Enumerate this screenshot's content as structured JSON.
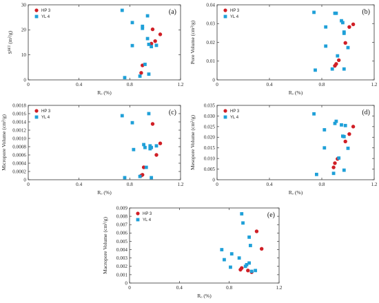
{
  "colors": {
    "hp3": "#d01f26",
    "yl4": "#1fa0d8",
    "axis": "#333333"
  },
  "chart_data": [
    {
      "type": "scatter",
      "panel_label": "(a)",
      "xlabel": "Rₒ (%)",
      "ylabel": "Sᴮᴱᵀ (m²/g)",
      "xlim": [
        0,
        1.2
      ],
      "ylim": [
        0,
        30
      ],
      "xticks": [
        "0",
        "0.4",
        "0.8",
        "1.2"
      ],
      "yticks": [
        "0",
        "10",
        "20",
        "30"
      ],
      "legend_position": "top-left",
      "series": [
        {
          "name": "HP 3",
          "marker": "circle",
          "points": [
            [
              0.89,
              2.8
            ],
            [
              0.9,
              5.8
            ],
            [
              0.98,
              20.2
            ],
            [
              1.0,
              15.5
            ],
            [
              1.04,
              18.2
            ],
            [
              0.97,
              14.5
            ]
          ]
        },
        {
          "name": "YL 4",
          "marker": "square",
          "points": [
            [
              0.74,
              27.8
            ],
            [
              0.76,
              0.9
            ],
            [
              0.82,
              22.9
            ],
            [
              0.82,
              13.7
            ],
            [
              0.88,
              1.5
            ],
            [
              0.9,
              21.4
            ],
            [
              0.9,
              20.6
            ],
            [
              0.92,
              6.2
            ],
            [
              0.94,
              25.6
            ],
            [
              0.94,
              16.5
            ],
            [
              0.95,
              2.3
            ],
            [
              0.95,
              14.2
            ],
            [
              0.97,
              13.3
            ],
            [
              1.01,
              13.8
            ]
          ]
        }
      ]
    },
    {
      "type": "scatter",
      "panel_label": "(b)",
      "xlabel": "Rₒ (%)",
      "ylabel": "Pore Volume (cm³/g)",
      "xlim": [
        0,
        1.2
      ],
      "ylim": [
        0,
        0.04
      ],
      "xticks": [
        "0",
        "0.4",
        "0.8",
        "1.2"
      ],
      "yticks": [
        "0",
        "0.01",
        "0.02",
        "0.03",
        "0.04"
      ],
      "legend_position": "top-left",
      "series": [
        {
          "name": "HP 3",
          "marker": "circle",
          "points": [
            [
              0.9,
              0.0075
            ],
            [
              0.91,
              0.0085
            ],
            [
              0.93,
              0.0105
            ],
            [
              0.98,
              0.0197
            ],
            [
              1.01,
              0.0282
            ],
            [
              1.04,
              0.0296
            ]
          ]
        },
        {
          "name": "YL 4",
          "marker": "square",
          "points": [
            [
              0.74,
              0.036
            ],
            [
              0.75,
              0.0052
            ],
            [
              0.83,
              0.0282
            ],
            [
              0.83,
              0.018
            ],
            [
              0.88,
              0.0058
            ],
            [
              0.9,
              0.0355
            ],
            [
              0.91,
              0.0355
            ],
            [
              0.92,
              0.0128
            ],
            [
              0.95,
              0.0315
            ],
            [
              0.96,
              0.0305
            ],
            [
              0.97,
              0.0255
            ],
            [
              0.97,
              0.0248
            ],
            [
              0.97,
              0.0058
            ],
            [
              1.0,
              0.0172
            ]
          ]
        }
      ]
    },
    {
      "type": "scatter",
      "panel_label": "(c)",
      "xlabel": "Rₒ (%)",
      "ylabel": "Micropore Volume (cm³/g)",
      "xlim": [
        0,
        1.2
      ],
      "ylim": [
        0,
        0.0018
      ],
      "xticks": [
        "0",
        "0.4",
        "0.8",
        "1.2"
      ],
      "yticks": [
        "0",
        "0.0002",
        "0.0004",
        "0.0006",
        "0.0008",
        "0.0010",
        "0.0012",
        "0.0014",
        "0.0016",
        "0.0018"
      ],
      "legend_position": "top-left",
      "series": [
        {
          "name": "HP 3",
          "marker": "circle",
          "points": [
            [
              0.89,
              0.0001
            ],
            [
              0.9,
              0.00012
            ],
            [
              0.91,
              0.0003
            ],
            [
              0.98,
              0.00135
            ],
            [
              1.01,
              0.0006
            ],
            [
              1.04,
              0.00088
            ]
          ]
        },
        {
          "name": "YL 4",
          "marker": "square",
          "points": [
            [
              0.74,
              0.00155
            ],
            [
              0.76,
              5e-05
            ],
            [
              0.82,
              0.00138
            ],
            [
              0.83,
              0.00073
            ],
            [
              0.88,
              8e-05
            ],
            [
              0.91,
              0.00085
            ],
            [
              0.92,
              0.00078
            ],
            [
              0.93,
              0.0003
            ],
            [
              0.95,
              0.0016
            ],
            [
              0.96,
              0.00082
            ],
            [
              0.96,
              0.00075
            ],
            [
              0.97,
              0.00078
            ],
            [
              0.97,
              5e-05
            ],
            [
              1.01,
              0.00082
            ]
          ]
        }
      ]
    },
    {
      "type": "scatter",
      "panel_label": "(d)",
      "xlabel": "Rₒ (%)",
      "ylabel": "Mesopore Volume (cm³/g)",
      "xlim": [
        0,
        1.2
      ],
      "ylim": [
        0,
        0.035
      ],
      "xticks": [
        "0",
        "0.4",
        "0.8",
        "1.2"
      ],
      "yticks": [
        "0",
        "0.005",
        "0.010",
        "0.015",
        "0.020",
        "0.025",
        "0.030",
        "0.035"
      ],
      "legend_position": "top-left",
      "series": [
        {
          "name": "HP 3",
          "marker": "circle",
          "points": [
            [
              0.89,
              0.0058
            ],
            [
              0.9,
              0.0078
            ],
            [
              0.92,
              0.0098
            ],
            [
              0.98,
              0.018
            ],
            [
              1.01,
              0.0215
            ],
            [
              1.04,
              0.025
            ]
          ]
        },
        {
          "name": "YL 4",
          "marker": "square",
          "points": [
            [
              0.74,
              0.031
            ],
            [
              0.76,
              0.0025
            ],
            [
              0.82,
              0.0235
            ],
            [
              0.82,
              0.015
            ],
            [
              0.89,
              0.003
            ],
            [
              0.9,
              0.0265
            ],
            [
              0.91,
              0.0275
            ],
            [
              0.93,
              0.0102
            ],
            [
              0.95,
              0.0258
            ],
            [
              0.96,
              0.0205
            ],
            [
              0.97,
              0.0203
            ],
            [
              0.97,
              0.0045
            ],
            [
              0.98,
              0.0255
            ],
            [
              1.0,
              0.0148
            ]
          ]
        }
      ]
    },
    {
      "type": "scatter",
      "panel_label": "(e)",
      "xlabel": "Rₒ (%)",
      "ylabel": "Macropore Volume (cm³/g)",
      "xlim": [
        0,
        1.2
      ],
      "ylim": [
        0,
        0.009
      ],
      "xticks": [
        "0",
        "0.4",
        "0.8",
        "1.2"
      ],
      "yticks": [
        "0",
        "0.001",
        "0.002",
        "0.003",
        "0.004",
        "0.005",
        "0.006",
        "0.007",
        "0.008",
        "0.009"
      ],
      "legend_position": "top-left",
      "series": [
        {
          "name": "HP 3",
          "marker": "circle",
          "points": [
            [
              0.89,
              0.0016
            ],
            [
              0.9,
              0.0018
            ],
            [
              0.95,
              0.0015
            ],
            [
              0.98,
              0.0013
            ],
            [
              1.02,
              0.0062
            ],
            [
              1.06,
              0.0041
            ]
          ]
        },
        {
          "name": "YL 4",
          "marker": "square",
          "points": [
            [
              0.74,
              0.004
            ],
            [
              0.76,
              0.0028
            ],
            [
              0.81,
              0.0019
            ],
            [
              0.82,
              0.0035
            ],
            [
              0.88,
              0.003
            ],
            [
              0.9,
              0.0083
            ],
            [
              0.91,
              0.0072
            ],
            [
              0.94,
              0.0022
            ],
            [
              0.96,
              0.0024
            ],
            [
              0.96,
              0.0055
            ],
            [
              0.97,
              0.0045
            ],
            [
              0.98,
              0.0014
            ],
            [
              1.01,
              0.0015
            ],
            [
              0.93,
              0.002
            ]
          ]
        }
      ]
    }
  ]
}
